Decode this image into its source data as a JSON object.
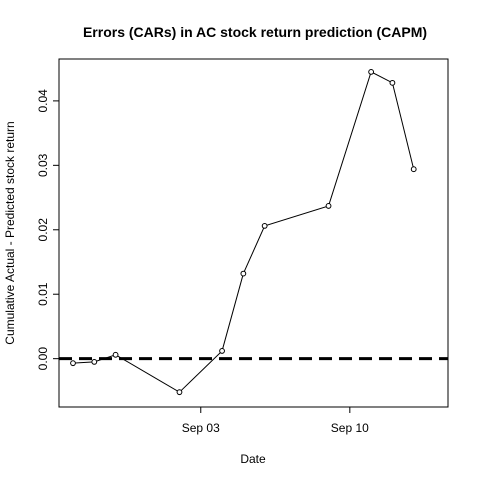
{
  "chart_data": {
    "type": "line",
    "title": "Errors (CARs) in AC stock return prediction (CAPM)",
    "xlabel": "Date",
    "ylabel": "Cumulative Actual - Predicted stock return",
    "x_ticks": [
      {
        "date": "2012-09-03",
        "label": "Sep 03"
      },
      {
        "date": "2012-09-10",
        "label": "Sep 10"
      }
    ],
    "y_ticks": [
      0.0,
      0.01,
      0.02,
      0.03,
      0.04
    ],
    "y_tick_labels": [
      "0.00",
      "0.01",
      "0.02",
      "0.03",
      "0.04"
    ],
    "xlim": [
      "2012-08-28",
      "2012-09-14"
    ],
    "ylim": [
      -0.0075,
      0.0465
    ],
    "series": [
      {
        "points": [
          {
            "x": "2012-08-28",
            "y": -0.0007
          },
          {
            "x": "2012-08-29",
            "y": -0.0005
          },
          {
            "x": "2012-08-30",
            "y": 0.0006
          },
          {
            "x": "2012-09-02",
            "y": -0.0052
          },
          {
            "x": "2012-09-04",
            "y": 0.0012
          },
          {
            "x": "2012-09-05",
            "y": 0.0132
          },
          {
            "x": "2012-09-06",
            "y": 0.0206
          },
          {
            "x": "2012-09-09",
            "y": 0.0237
          },
          {
            "x": "2012-09-11",
            "y": 0.0445
          },
          {
            "x": "2012-09-12",
            "y": 0.0428
          },
          {
            "x": "2012-09-13",
            "y": 0.0294
          }
        ]
      }
    ],
    "reference_line": {
      "y": 0,
      "style": "dashed"
    }
  }
}
